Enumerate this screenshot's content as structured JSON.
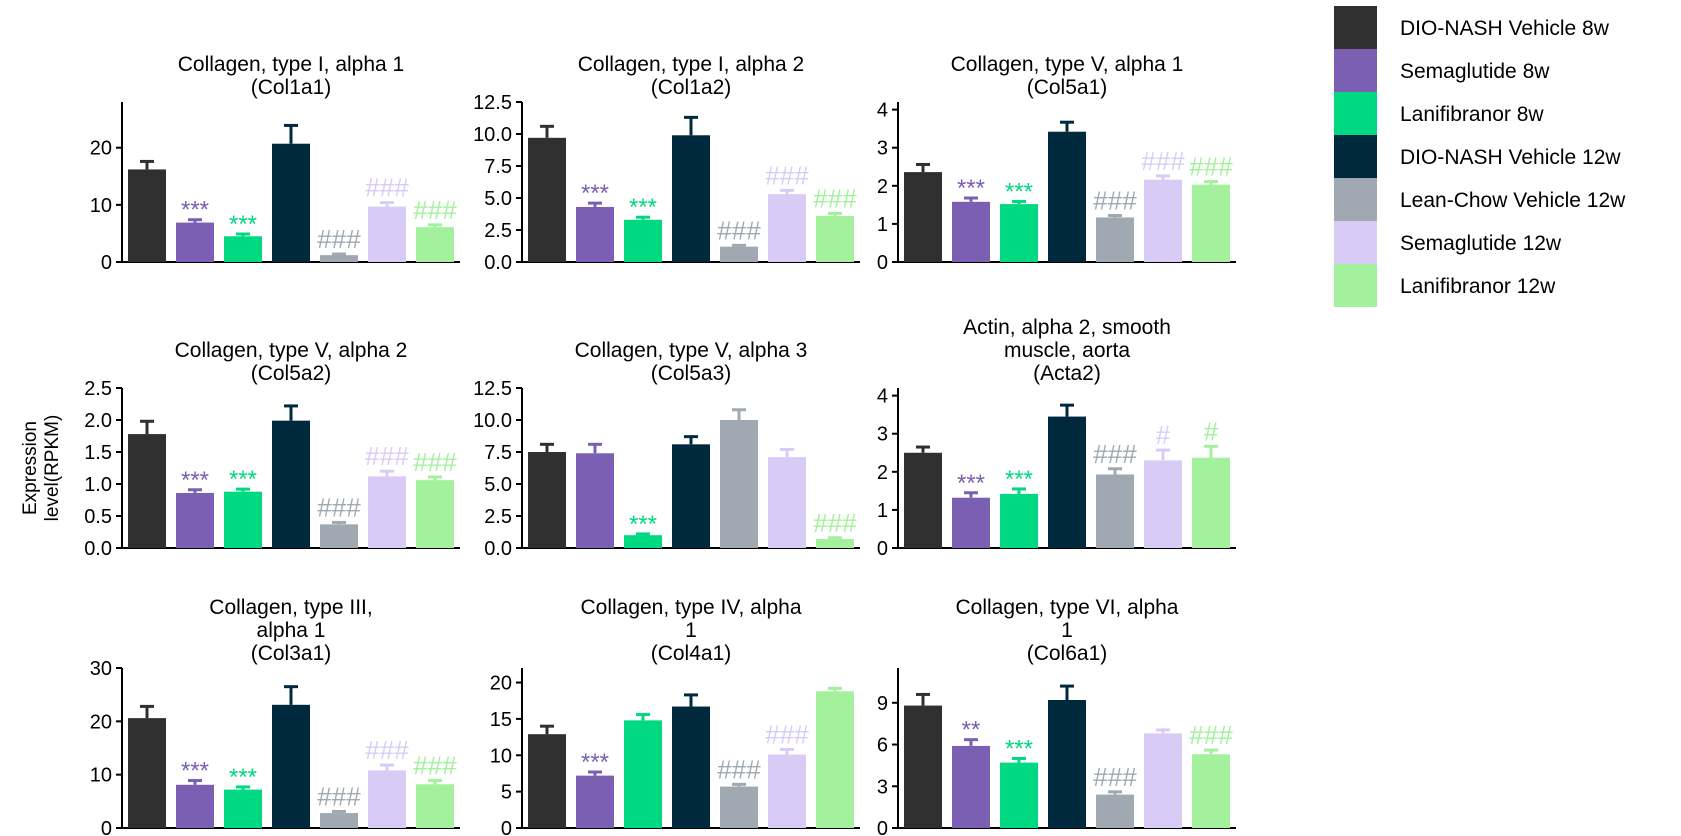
{
  "ylabel": "Expression\nlevel(RPKM)",
  "legend": [
    {
      "name": "DIO-NASH Vehicle 8w",
      "color": "#303030"
    },
    {
      "name": "Semaglutide 8w",
      "color": "#7a5fb3"
    },
    {
      "name": "Lanifibranor 8w",
      "color": "#00d882"
    },
    {
      "name": "DIO-NASH Vehicle 12w",
      "color": "#01293e"
    },
    {
      "name": "Lean-Chow Vehicle 12w",
      "color": "#a0a9b1"
    },
    {
      "name": "Semaglutide 12w",
      "color": "#d8ccf7"
    },
    {
      "name": "Lanifibranor 12w",
      "color": "#a3f19c"
    }
  ],
  "chart_data": [
    {
      "type": "bar",
      "title": "Collagen, type I, alpha 1\n(Col1a1)",
      "ylim": [
        0,
        28
      ],
      "yticks": [
        0,
        10,
        20
      ],
      "ytick_labels": [
        "0",
        "10",
        "20"
      ],
      "values": [
        16.2,
        6.9,
        4.5,
        20.7,
        1.2,
        9.7,
        6.1
      ],
      "errors": [
        1.4,
        0.5,
        0.4,
        3.2,
        0.2,
        0.7,
        0.4
      ],
      "annotations": [
        "",
        "***",
        "***",
        "",
        "###",
        "###",
        "###"
      ]
    },
    {
      "type": "bar",
      "title": "Collagen, type I, alpha 2\n(Col1a2)",
      "ylim": [
        0,
        12.5
      ],
      "yticks": [
        0,
        2.5,
        5,
        7.5,
        10,
        12.5
      ],
      "ytick_labels": [
        "0.0",
        "2.5",
        "5.0",
        "7.5",
        "10.0",
        "12.5"
      ],
      "values": [
        9.7,
        4.3,
        3.3,
        9.9,
        1.2,
        5.3,
        3.6
      ],
      "errors": [
        0.9,
        0.3,
        0.2,
        1.4,
        0.1,
        0.3,
        0.2
      ],
      "annotations": [
        "",
        "***",
        "***",
        "",
        "###",
        "###",
        "###"
      ]
    },
    {
      "type": "bar",
      "title": "Collagen, type V, alpha 1\n(Col5a1)",
      "ylim": [
        0,
        4.2
      ],
      "yticks": [
        0,
        1,
        2,
        3,
        4
      ],
      "ytick_labels": [
        "0",
        "1",
        "2",
        "3",
        "4"
      ],
      "values": [
        2.36,
        1.58,
        1.52,
        3.42,
        1.17,
        2.16,
        2.03
      ],
      "errors": [
        0.2,
        0.1,
        0.07,
        0.25,
        0.05,
        0.1,
        0.08
      ],
      "annotations": [
        "",
        "***",
        "***",
        "",
        "###",
        "###",
        "###"
      ]
    },
    {
      "type": "bar",
      "title": "Collagen, type V, alpha 2\n(Col5a2)",
      "ylim": [
        0,
        2.5
      ],
      "yticks": [
        0,
        0.5,
        1,
        1.5,
        2,
        2.5
      ],
      "ytick_labels": [
        "0.0",
        "0.5",
        "1.0",
        "1.5",
        "2.0",
        "2.5"
      ],
      "values": [
        1.78,
        0.86,
        0.88,
        1.99,
        0.37,
        1.12,
        1.06
      ],
      "errors": [
        0.2,
        0.05,
        0.04,
        0.23,
        0.03,
        0.08,
        0.05
      ],
      "annotations": [
        "",
        "***",
        "***",
        "",
        "###",
        "###",
        "###"
      ]
    },
    {
      "type": "bar",
      "title": "Collagen, type V, alpha 3\n(Col5a3)",
      "ylim": [
        0,
        12.5
      ],
      "yticks": [
        0,
        2.5,
        5,
        7.5,
        10,
        12.5
      ],
      "ytick_labels": [
        "0.0",
        "2.5",
        "5.0",
        "7.5",
        "10.0",
        "12.5"
      ],
      "values": [
        7.5,
        7.4,
        1.0,
        8.1,
        10.0,
        7.1,
        0.7
      ],
      "errors": [
        0.6,
        0.7,
        0.1,
        0.6,
        0.8,
        0.6,
        0.1
      ],
      "annotations": [
        "",
        "",
        "***",
        "",
        "",
        "",
        "###"
      ]
    },
    {
      "type": "bar",
      "title": "Actin, alpha 2, smooth\nmuscle, aorta\n(Acta2)",
      "ylim": [
        0,
        4.2
      ],
      "yticks": [
        0,
        1,
        2,
        3,
        4
      ],
      "ytick_labels": [
        "0",
        "1",
        "2",
        "3",
        "4"
      ],
      "values": [
        2.5,
        1.32,
        1.42,
        3.45,
        1.93,
        2.3,
        2.37
      ],
      "errors": [
        0.15,
        0.13,
        0.13,
        0.3,
        0.15,
        0.27,
        0.3
      ],
      "annotations": [
        "",
        "***",
        "***",
        "",
        "###",
        "#",
        "#"
      ]
    },
    {
      "type": "bar",
      "title": "Collagen, type III,\nalpha 1\n(Col3a1)",
      "ylim": [
        0,
        30
      ],
      "yticks": [
        0,
        10,
        20,
        30
      ],
      "ytick_labels": [
        "0",
        "10",
        "20",
        "30"
      ],
      "values": [
        20.6,
        8.1,
        7.2,
        23.1,
        2.8,
        10.8,
        8.2
      ],
      "errors": [
        2.2,
        0.8,
        0.5,
        3.4,
        0.3,
        1.0,
        0.7
      ],
      "annotations": [
        "",
        "***",
        "***",
        "",
        "###",
        "###",
        "###"
      ]
    },
    {
      "type": "bar",
      "title": "Collagen, type IV, alpha\n1\n(Col4a1)",
      "ylim": [
        0,
        22
      ],
      "yticks": [
        0,
        5,
        10,
        15,
        20
      ],
      "ytick_labels": [
        "0",
        "5",
        "10",
        "15",
        "20"
      ],
      "values": [
        12.9,
        7.2,
        14.8,
        16.7,
        5.7,
        10.1,
        18.8
      ],
      "errors": [
        1.1,
        0.5,
        0.8,
        1.6,
        0.3,
        0.7,
        0.4
      ],
      "annotations": [
        "",
        "***",
        "",
        "",
        "###",
        "###",
        ""
      ]
    },
    {
      "type": "bar",
      "title": "Collagen, type VI, alpha\n1\n(Col6a1)",
      "ylim": [
        0,
        11.5
      ],
      "yticks": [
        0,
        3,
        6,
        9
      ],
      "ytick_labels": [
        "0",
        "3",
        "6",
        "9"
      ],
      "values": [
        8.8,
        5.9,
        4.7,
        9.2,
        2.4,
        6.8,
        5.3
      ],
      "errors": [
        0.8,
        0.45,
        0.3,
        1.0,
        0.2,
        0.25,
        0.3
      ],
      "annotations": [
        "",
        "**",
        "***",
        "",
        "###",
        "",
        "###"
      ]
    }
  ]
}
